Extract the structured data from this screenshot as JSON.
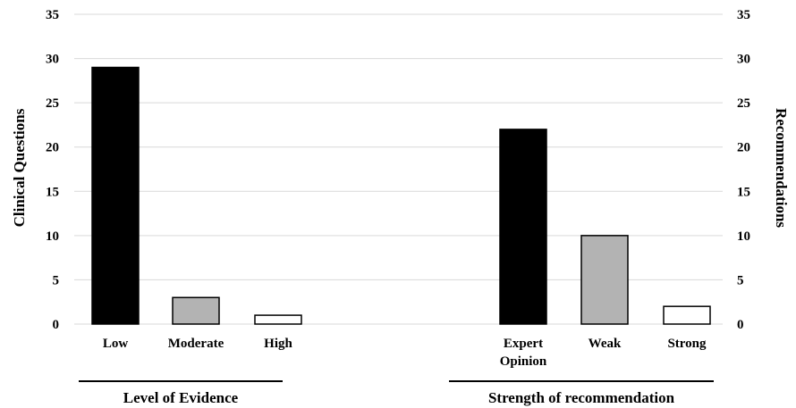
{
  "chart_data": {
    "type": "bar",
    "ylim": [
      0,
      35
    ],
    "yticks": [
      "0",
      "5",
      "10",
      "15",
      "20",
      "25",
      "30",
      "35"
    ],
    "ylabel_left": "Clinical Questions",
    "ylabel_right": "Recommendations",
    "grid": true,
    "groups": [
      {
        "title": "Level of Evidence",
        "categories": [
          [
            "Low"
          ],
          [
            "Moderate"
          ],
          [
            "High"
          ]
        ],
        "values": [
          29,
          3,
          1
        ],
        "colors": [
          "#000000",
          "#b3b3b3",
          "#ffffff"
        ]
      },
      {
        "title": "Strength of recommendation",
        "categories": [
          [
            "Expert",
            "Opinion"
          ],
          [
            "Weak"
          ],
          [
            "Strong"
          ]
        ],
        "values": [
          22,
          10,
          2
        ],
        "colors": [
          "#000000",
          "#b3b3b3",
          "#ffffff"
        ]
      }
    ]
  }
}
